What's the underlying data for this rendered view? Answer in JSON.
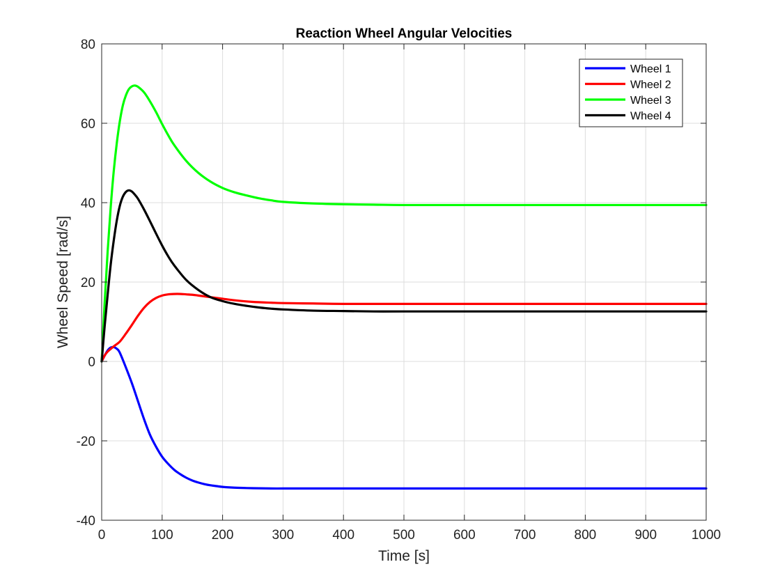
{
  "chart_data": {
    "type": "line",
    "title": "Reaction Wheel Angular Velocities",
    "xlabel": "Time [s]",
    "ylabel": "Wheel Speed [rad/s]",
    "xlim": [
      0,
      1000
    ],
    "ylim": [
      -40,
      80
    ],
    "xticks": [
      0,
      100,
      200,
      300,
      400,
      500,
      600,
      700,
      800,
      900,
      1000
    ],
    "yticks": [
      -40,
      -20,
      0,
      20,
      40,
      60,
      80
    ],
    "xtick_labels": [
      "0",
      "100",
      "200",
      "300",
      "400",
      "500",
      "600",
      "700",
      "800",
      "900",
      "1000"
    ],
    "ytick_labels": [
      "-40",
      "-20",
      "0",
      "20",
      "40",
      "60",
      "80"
    ],
    "grid": true,
    "legend_position": "top-right",
    "series": [
      {
        "name": "Wheel 1",
        "color": "#0000ff",
        "x": [
          0,
          5,
          10,
          15,
          20,
          25,
          30,
          40,
          50,
          60,
          70,
          80,
          90,
          100,
          110,
          120,
          130,
          140,
          150,
          160,
          170,
          180,
          190,
          200,
          220,
          240,
          260,
          280,
          300,
          320,
          350,
          380,
          400,
          450,
          500,
          600,
          700,
          800,
          900,
          1000
        ],
        "y": [
          0,
          1.5,
          2.8,
          3.5,
          3.6,
          3.2,
          2.2,
          -1.5,
          -5.5,
          -10.0,
          -14.5,
          -18.5,
          -21.5,
          -24.0,
          -25.8,
          -27.3,
          -28.4,
          -29.3,
          -30.0,
          -30.5,
          -30.9,
          -31.2,
          -31.4,
          -31.6,
          -31.8,
          -31.9,
          -31.95,
          -32.0,
          -32.0,
          -32.0,
          -32.0,
          -32.0,
          -32.0,
          -32.0,
          -32.0,
          -32.0,
          -32.0,
          -32.0,
          -32.0,
          -32.0
        ]
      },
      {
        "name": "Wheel 2",
        "color": "#ff0000",
        "x": [
          0,
          5,
          10,
          20,
          30,
          40,
          50,
          60,
          70,
          80,
          90,
          100,
          110,
          120,
          130,
          140,
          150,
          160,
          180,
          200,
          220,
          250,
          280,
          300,
          350,
          400,
          500,
          600,
          700,
          800,
          900,
          1000
        ],
        "y": [
          0,
          1.5,
          2.5,
          3.8,
          5.0,
          7.0,
          9.2,
          11.5,
          13.5,
          15.0,
          16.0,
          16.6,
          16.9,
          17.0,
          17.0,
          16.9,
          16.8,
          16.6,
          16.2,
          15.8,
          15.4,
          15.0,
          14.8,
          14.7,
          14.6,
          14.5,
          14.5,
          14.5,
          14.5,
          14.5,
          14.5,
          14.5
        ]
      },
      {
        "name": "Wheel 3",
        "color": "#00ff00",
        "x": [
          0,
          5,
          10,
          15,
          20,
          25,
          30,
          35,
          40,
          45,
          50,
          55,
          60,
          70,
          80,
          90,
          100,
          110,
          120,
          140,
          160,
          180,
          200,
          220,
          240,
          260,
          280,
          300,
          350,
          400,
          450,
          500,
          600,
          700,
          800,
          900,
          1000
        ],
        "y": [
          0,
          15.0,
          28.0,
          39.0,
          48.0,
          55.0,
          60.5,
          64.5,
          67.0,
          68.6,
          69.3,
          69.5,
          69.2,
          67.8,
          65.5,
          62.8,
          59.8,
          57.0,
          54.5,
          50.5,
          47.5,
          45.3,
          43.7,
          42.6,
          41.8,
          41.1,
          40.6,
          40.2,
          39.8,
          39.6,
          39.5,
          39.4,
          39.4,
          39.4,
          39.4,
          39.4,
          39.4
        ]
      },
      {
        "name": "Wheel 4",
        "color": "#000000",
        "x": [
          0,
          5,
          10,
          15,
          20,
          25,
          30,
          35,
          40,
          45,
          50,
          55,
          60,
          70,
          80,
          90,
          100,
          110,
          120,
          140,
          160,
          180,
          200,
          220,
          240,
          260,
          280,
          300,
          350,
          400,
          450,
          500,
          600,
          700,
          800,
          900,
          1000
        ],
        "y": [
          0,
          9.0,
          17.0,
          24.5,
          30.5,
          35.5,
          39.2,
          41.5,
          42.7,
          43.1,
          42.8,
          42.0,
          41.0,
          38.3,
          35.3,
          32.2,
          29.2,
          26.5,
          24.2,
          20.5,
          18.0,
          16.2,
          15.2,
          14.5,
          14.0,
          13.6,
          13.3,
          13.1,
          12.8,
          12.7,
          12.6,
          12.6,
          12.6,
          12.6,
          12.6,
          12.6,
          12.6
        ]
      }
    ]
  }
}
